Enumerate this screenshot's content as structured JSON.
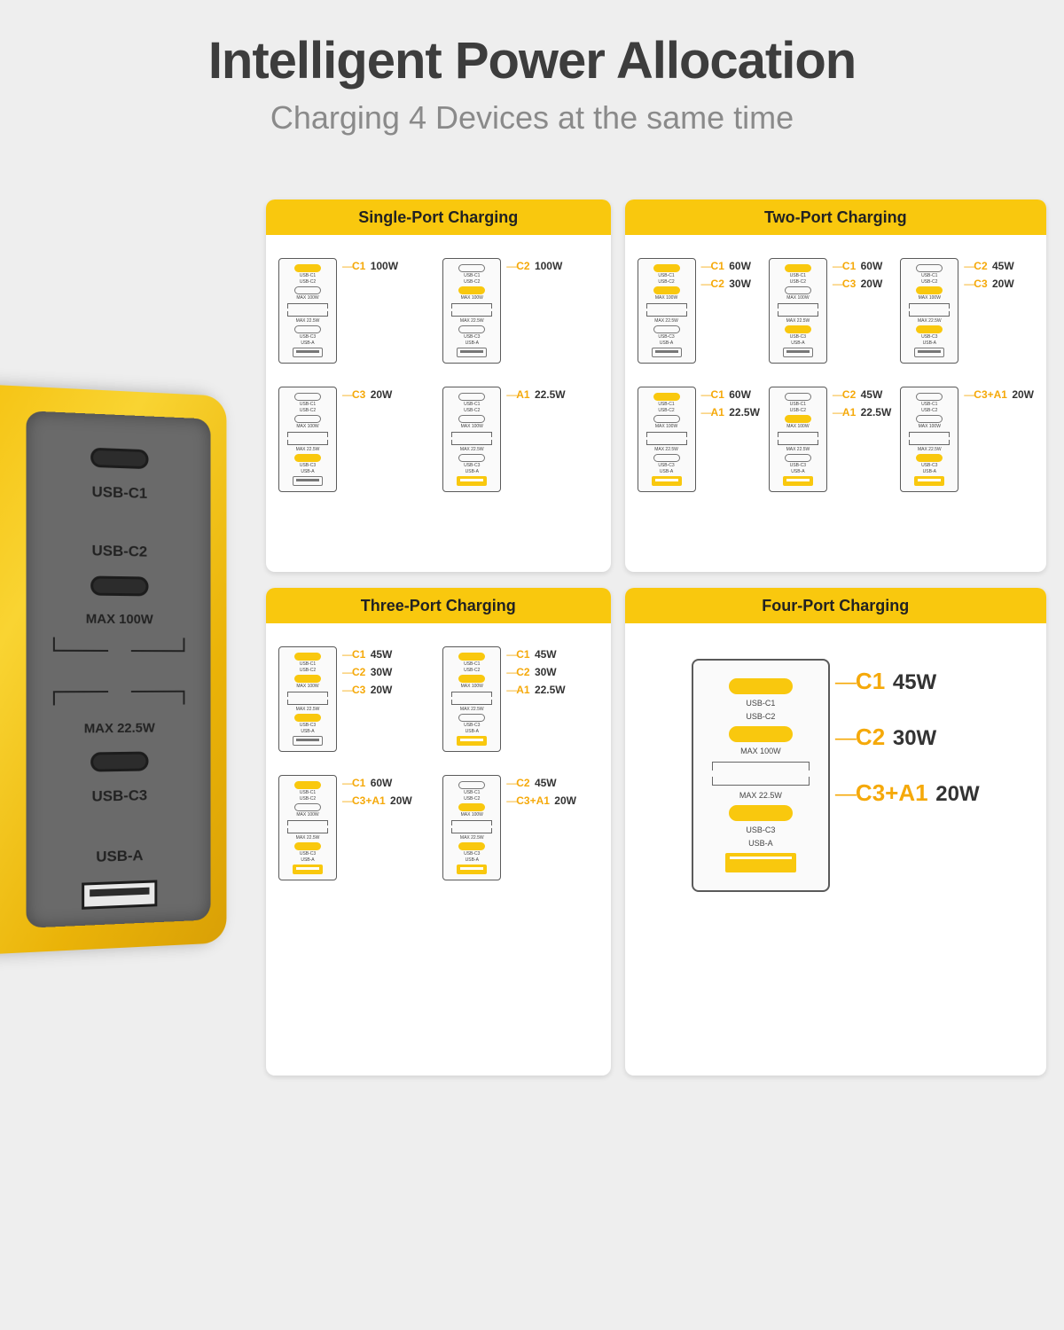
{
  "title": "Intelligent Power Allocation",
  "subtitle": "Charging 4 Devices at the same time",
  "colors": {
    "bg": "#eeeeee",
    "panel_bg": "#ffffff",
    "accent": "#f9c80e",
    "title_color": "#3d3d3d",
    "subtitle_color": "#8a8a8a",
    "port_label": "#f5a90a",
    "watt_color": "#333333",
    "charger_face": "#6a6a6a"
  },
  "physical_charger": {
    "port_labels": [
      "USB-C1",
      "USB-C2",
      "USB-C3",
      "USB-A"
    ],
    "group1_label": "MAX 100W",
    "group2_label": "MAX 22.5W"
  },
  "port_slot_labels": {
    "c1": "USB-C1",
    "c2": "USB-C2",
    "c3": "USB-C3",
    "a1": "USB-A",
    "g1": "MAX 100W",
    "g2": "MAX 22.5W"
  },
  "panels": [
    {
      "id": "single",
      "title": "Single-Port Charging",
      "cols": 2,
      "configs": [
        {
          "active": [
            "c1"
          ],
          "callouts": [
            {
              "port": "C1",
              "watt": "100W"
            }
          ]
        },
        {
          "active": [
            "c2"
          ],
          "callouts": [
            {
              "port": "C2",
              "watt": "100W"
            }
          ]
        },
        {
          "active": [
            "c3"
          ],
          "callouts": [
            {
              "port": "C3",
              "watt": "20W"
            }
          ]
        },
        {
          "active": [
            "a1"
          ],
          "callouts": [
            {
              "port": "A1",
              "watt": "22.5W"
            }
          ]
        }
      ]
    },
    {
      "id": "two",
      "title": "Two-Port Charging",
      "cols": 3,
      "configs": [
        {
          "active": [
            "c1",
            "c2"
          ],
          "callouts": [
            {
              "port": "C1",
              "watt": "60W"
            },
            {
              "port": "C2",
              "watt": "30W"
            }
          ]
        },
        {
          "active": [
            "c1",
            "c3"
          ],
          "callouts": [
            {
              "port": "C1",
              "watt": "60W"
            },
            {
              "port": "C3",
              "watt": "20W"
            }
          ]
        },
        {
          "active": [
            "c2",
            "c3"
          ],
          "callouts": [
            {
              "port": "C2",
              "watt": "45W"
            },
            {
              "port": "C3",
              "watt": "20W"
            }
          ]
        },
        {
          "active": [
            "c1",
            "a1"
          ],
          "callouts": [
            {
              "port": "C1",
              "watt": "60W"
            },
            {
              "port": "A1",
              "watt": "22.5W"
            }
          ]
        },
        {
          "active": [
            "c2",
            "a1"
          ],
          "callouts": [
            {
              "port": "C2",
              "watt": "45W"
            },
            {
              "port": "A1",
              "watt": "22.5W"
            }
          ]
        },
        {
          "active": [
            "c3",
            "a1"
          ],
          "callouts": [
            {
              "port": "C3+A1",
              "watt": "20W"
            }
          ]
        }
      ]
    },
    {
      "id": "three",
      "title": "Three-Port Charging",
      "cols": 2,
      "configs": [
        {
          "active": [
            "c1",
            "c2",
            "c3"
          ],
          "callouts": [
            {
              "port": "C1",
              "watt": "45W"
            },
            {
              "port": "C2",
              "watt": "30W"
            },
            {
              "port": "C3",
              "watt": "20W"
            }
          ]
        },
        {
          "active": [
            "c1",
            "c2",
            "a1"
          ],
          "callouts": [
            {
              "port": "C1",
              "watt": "45W"
            },
            {
              "port": "C2",
              "watt": "30W"
            },
            {
              "port": "A1",
              "watt": "22.5W"
            }
          ]
        },
        {
          "active": [
            "c1",
            "c3",
            "a1"
          ],
          "callouts": [
            {
              "port": "C1",
              "watt": "60W"
            },
            {
              "port": "C3+A1",
              "watt": "20W"
            }
          ]
        },
        {
          "active": [
            "c2",
            "c3",
            "a1"
          ],
          "callouts": [
            {
              "port": "C2",
              "watt": "45W"
            },
            {
              "port": "C3+A1",
              "watt": "20W"
            }
          ]
        }
      ]
    },
    {
      "id": "four",
      "title": "Four-Port Charging",
      "cols": 1,
      "big": true,
      "configs": [
        {
          "active": [
            "c1",
            "c2",
            "c3",
            "a1"
          ],
          "callouts": [
            {
              "port": "C1",
              "watt": "45W"
            },
            {
              "port": "C2",
              "watt": "30W"
            },
            {
              "port": "C3+A1",
              "watt": "20W"
            }
          ]
        }
      ]
    }
  ]
}
